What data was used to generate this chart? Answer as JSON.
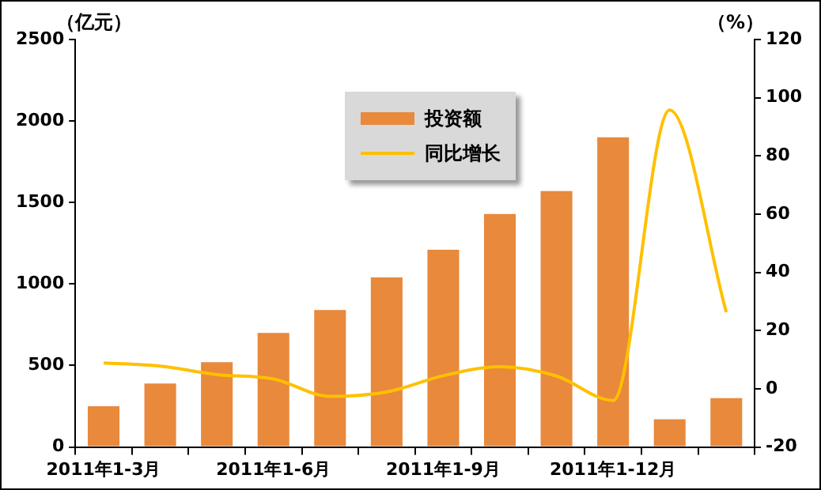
{
  "chart_data": {
    "type": "bar",
    "ylabel": "（亿元）",
    "y2label": "（%）",
    "categories": [
      "2011年1-3月",
      null,
      null,
      "2011年1-6月",
      null,
      null,
      "2011年1-9月",
      null,
      null,
      "2011年1-12月",
      null,
      null
    ],
    "series": [
      {
        "name": "投资额",
        "color": "#e8893c",
        "values": [
          250,
          390,
          520,
          700,
          840,
          1040,
          1210,
          1430,
          1570,
          1900,
          170,
          300
        ]
      },
      {
        "name": "同比增长",
        "type": "line",
        "axis": "y2",
        "color": "#ffc000",
        "values": [
          8.9,
          7.8,
          4.9,
          3.4,
          -2.6,
          -1.1,
          4.5,
          7.6,
          4.4,
          -4,
          95.8,
          26.3
        ]
      }
    ],
    "ylim": [
      0,
      2500
    ],
    "yticks": [
      0,
      500,
      1000,
      1500,
      2000,
      2500
    ],
    "y2lim": [
      -20,
      120
    ],
    "y2ticks": [
      -20,
      0,
      20,
      40,
      60,
      80,
      100,
      120
    ],
    "grid": false,
    "legend": "top",
    "marker": "none",
    "line_style": "solid"
  }
}
